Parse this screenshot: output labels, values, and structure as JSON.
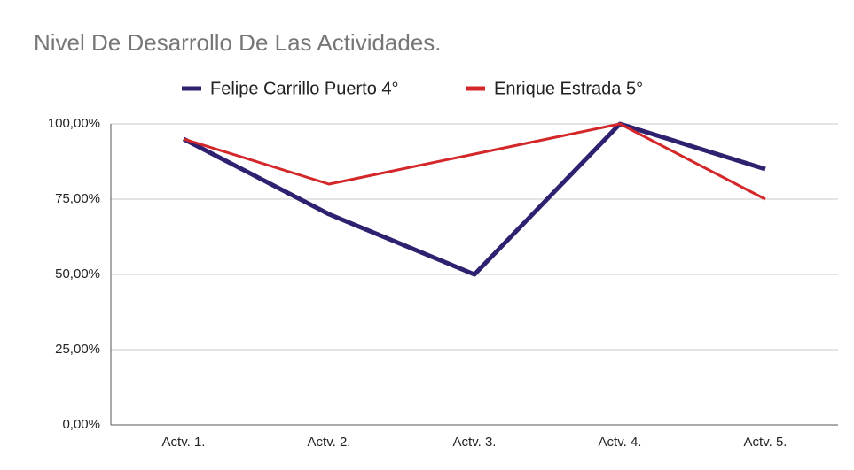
{
  "chart_data": {
    "type": "line",
    "title": "Nivel De Desarrollo De Las Actividades.",
    "categories": [
      "Actv. 1.",
      "Actv. 2.",
      "Actv. 3.",
      "Actv. 4.",
      "Actv. 5."
    ],
    "series": [
      {
        "name": "Felipe Carrillo Puerto 4°",
        "color": "#2f2170",
        "values": [
          95,
          70,
          50,
          100,
          85
        ]
      },
      {
        "name": "Enrique Estrada 5°",
        "color": "#d3272a",
        "values": [
          95,
          80,
          90,
          100,
          75
        ]
      }
    ],
    "ylim": [
      0,
      100
    ],
    "yticks": [
      {
        "value": 0,
        "label": "0,00%"
      },
      {
        "value": 25,
        "label": "25,00%"
      },
      {
        "value": 50,
        "label": "50,00%"
      },
      {
        "value": 75,
        "label": "75,00%"
      },
      {
        "value": 100,
        "label": "100,00%"
      }
    ],
    "grid": true,
    "legend": "top"
  }
}
